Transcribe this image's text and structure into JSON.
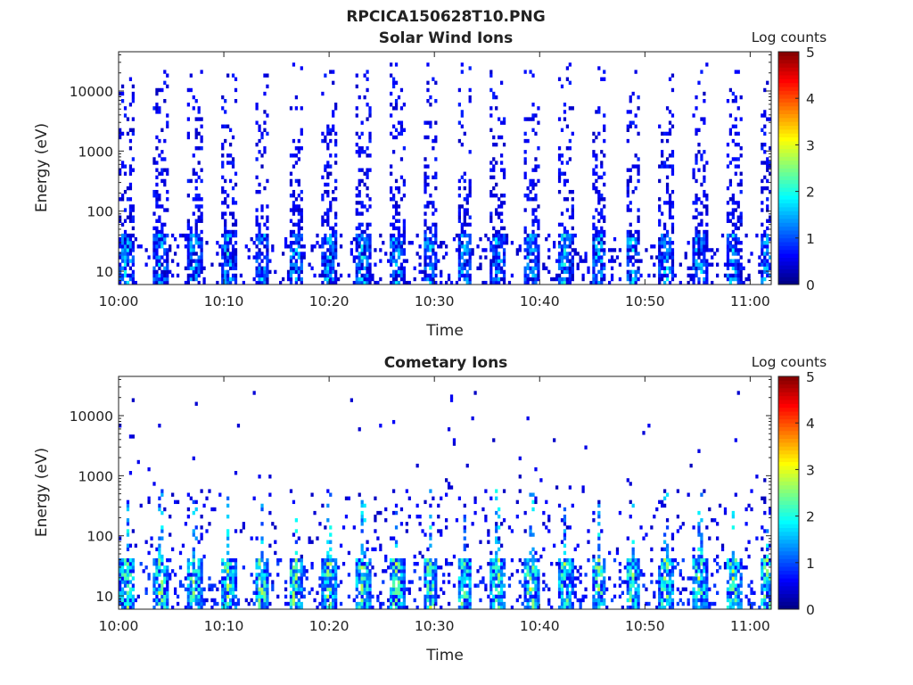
{
  "figure": {
    "title": "RPCICA150628T10.PNG"
  },
  "chart_data": [
    {
      "type": "heatmap",
      "title": "Solar Wind Ions",
      "xlabel": "Time",
      "ylabel": "Energy (eV)",
      "x_tick_labels": [
        "10:00",
        "10:10",
        "10:20",
        "10:30",
        "10:40",
        "10:50",
        "11:00"
      ],
      "x_ticks_minutes": [
        0,
        10,
        20,
        30,
        40,
        50,
        60
      ],
      "xlim_minutes": [
        0,
        62
      ],
      "y_scale": "log",
      "y_tick_labels": [
        "10",
        "100",
        "1000",
        "10000"
      ],
      "y_ticks": [
        10,
        100,
        1000,
        10000
      ],
      "ylim": [
        6,
        45000
      ],
      "colorbar": {
        "label": "Log counts",
        "range": [
          0,
          5
        ],
        "tick_labels": [
          "0",
          "1",
          "2",
          "3",
          "4",
          "5"
        ],
        "colormap": "jet"
      },
      "scan_period_minutes": 3.2,
      "scan_count": 20,
      "pattern": "periodic energy sweeps; sparse counts (log ~0.3-1) spanning 20-30000 eV, denser counts (log ~1-2.2) at 7-45 eV",
      "low_energy_peak_log_counts": 2.2,
      "high_energy_typical_log_counts": 0.3
    },
    {
      "type": "heatmap",
      "title": "Cometary Ions",
      "xlabel": "Time",
      "ylabel": "Energy (eV)",
      "x_tick_labels": [
        "10:00",
        "10:10",
        "10:20",
        "10:30",
        "10:40",
        "10:50",
        "11:00"
      ],
      "x_ticks_minutes": [
        0,
        10,
        20,
        30,
        40,
        50,
        60
      ],
      "xlim_minutes": [
        0,
        62
      ],
      "y_scale": "log",
      "y_tick_labels": [
        "10",
        "100",
        "1000",
        "10000"
      ],
      "y_ticks": [
        10,
        100,
        1000,
        10000
      ],
      "ylim": [
        6,
        45000
      ],
      "colorbar": {
        "label": "Log counts",
        "range": [
          0,
          5
        ],
        "tick_labels": [
          "0",
          "1",
          "2",
          "3",
          "4",
          "5"
        ],
        "colormap": "jet"
      },
      "scan_period_minutes": 3.2,
      "scan_count": 20,
      "pattern": "intense counts (log ~1.5-3) at 7-45 eV with plumes to ~500 eV; scattered isolated counts up to ~25000 eV",
      "low_energy_peak_log_counts": 3.1,
      "high_energy_typical_log_counts": 0.3
    }
  ],
  "colors": {
    "axis": "#222222",
    "background": "#ffffff",
    "empty_bin": "#ffffff"
  }
}
